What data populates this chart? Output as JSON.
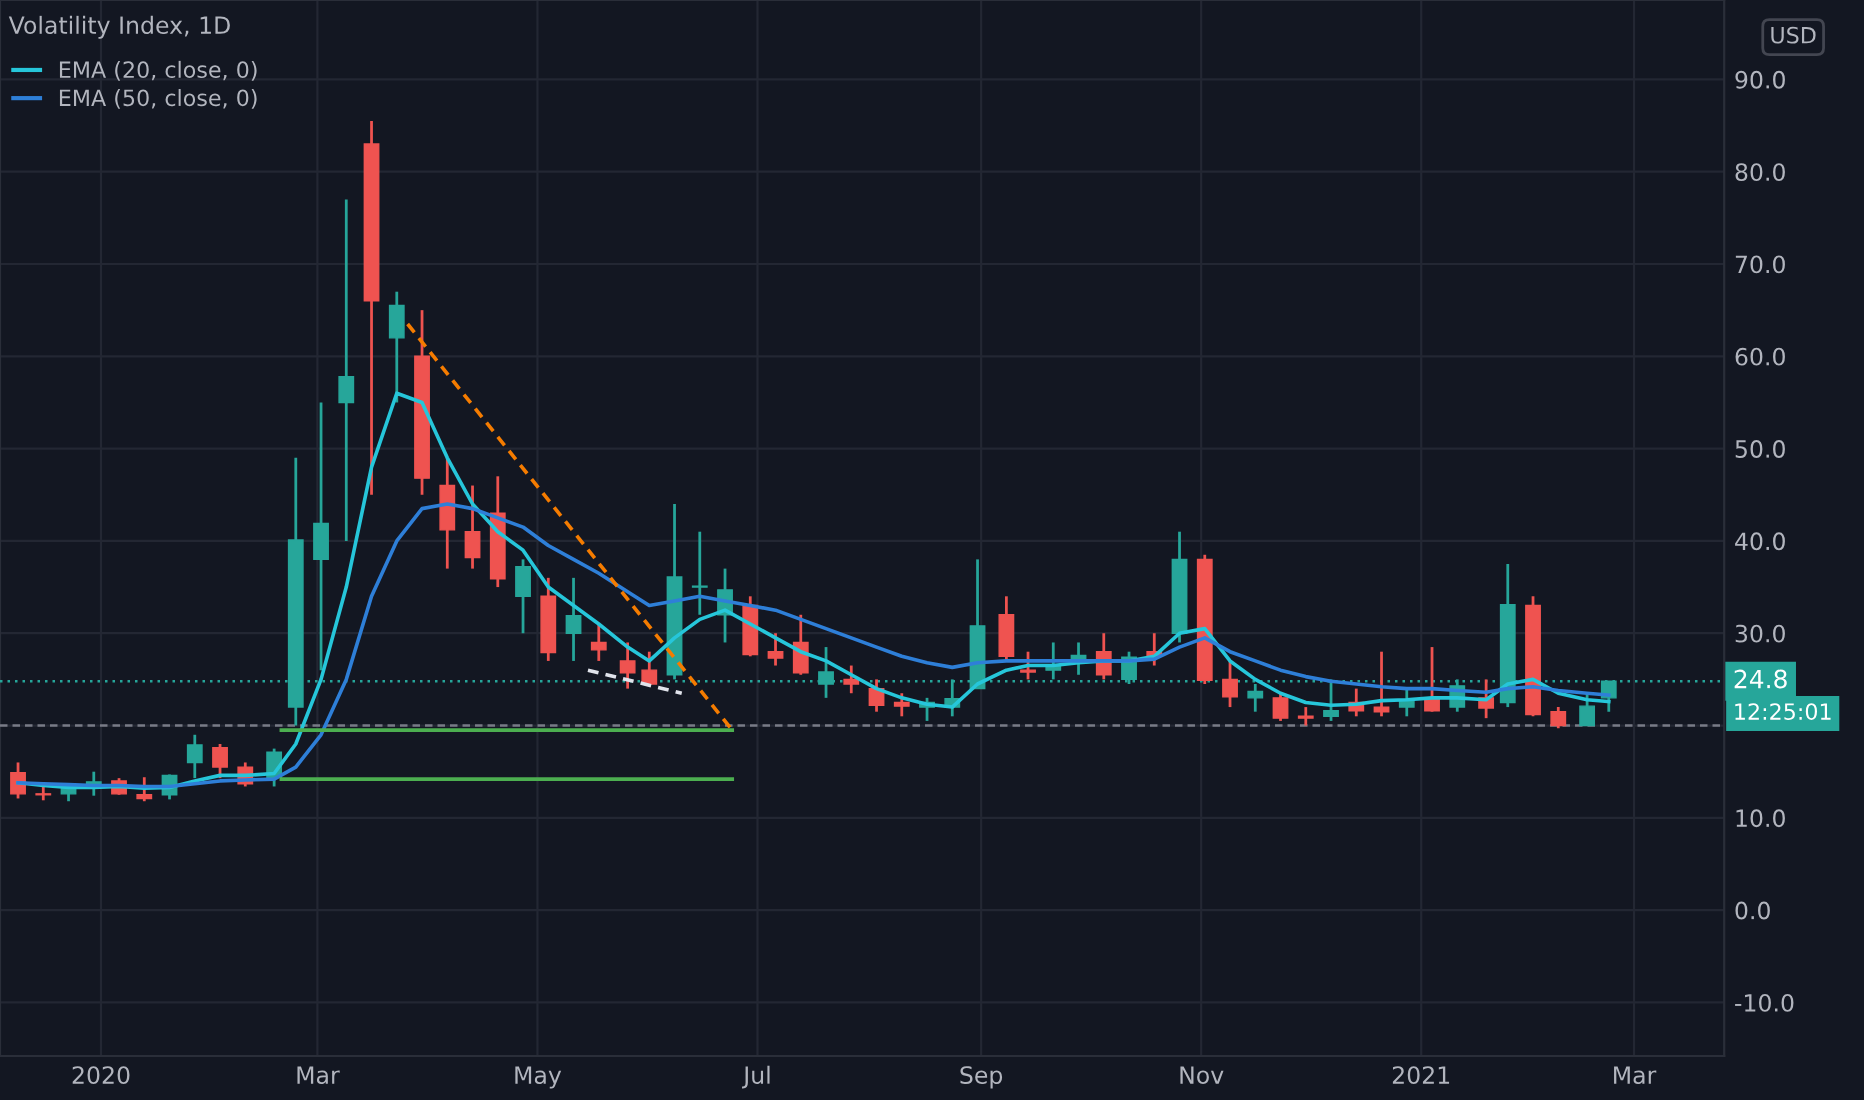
{
  "chart_data": {
    "type": "candlestick",
    "title": "Volatility Index, 1D",
    "x": [
      "2019-12-09",
      "2019-12-16",
      "2019-12-23",
      "2019-12-30",
      "2020-01-06",
      "2020-01-13",
      "2020-01-20",
      "2020-01-27",
      "2020-02-03",
      "2020-02-10",
      "2020-02-18",
      "2020-02-24",
      "2020-03-02",
      "2020-03-09",
      "2020-03-16",
      "2020-03-23",
      "2020-03-30",
      "2020-04-06",
      "2020-04-13",
      "2020-04-20",
      "2020-04-27",
      "2020-05-04",
      "2020-05-11",
      "2020-05-18",
      "2020-05-26",
      "2020-06-01",
      "2020-06-08",
      "2020-06-15",
      "2020-06-22",
      "2020-06-29",
      "2020-07-06",
      "2020-07-13",
      "2020-07-20",
      "2020-07-27",
      "2020-08-03",
      "2020-08-10",
      "2020-08-17",
      "2020-08-24",
      "2020-08-31",
      "2020-09-08",
      "2020-09-14",
      "2020-09-21",
      "2020-09-28",
      "2020-10-05",
      "2020-10-12",
      "2020-10-19",
      "2020-10-26",
      "2020-11-02",
      "2020-11-09",
      "2020-11-16",
      "2020-11-23",
      "2020-11-30",
      "2020-12-07",
      "2020-12-14",
      "2020-12-21",
      "2020-12-28",
      "2021-01-04",
      "2021-01-11",
      "2021-01-19",
      "2021-01-25",
      "2021-02-01",
      "2021-02-08",
      "2021-02-16",
      "2021-02-22"
    ],
    "ohlc": [
      [
        14.9,
        16.0,
        12.1,
        12.6
      ],
      [
        12.6,
        13.5,
        11.9,
        12.5
      ],
      [
        12.6,
        13.5,
        11.8,
        13.4
      ],
      [
        13.4,
        15.0,
        12.4,
        13.9
      ],
      [
        14.0,
        14.3,
        12.5,
        12.6
      ],
      [
        12.5,
        14.4,
        11.8,
        12.1
      ],
      [
        12.5,
        14.7,
        12.0,
        14.6
      ],
      [
        16.0,
        19.0,
        14.3,
        17.9
      ],
      [
        17.6,
        18.0,
        14.3,
        15.5
      ],
      [
        15.5,
        16.0,
        13.4,
        13.7
      ],
      [
        14.4,
        17.5,
        13.4,
        17.1
      ],
      [
        22.0,
        49.0,
        20.0,
        40.1
      ],
      [
        38.0,
        55.0,
        26.0,
        41.9
      ],
      [
        55.0,
        77.0,
        40.0,
        57.8
      ],
      [
        83.0,
        85.5,
        45.0,
        66.0
      ],
      [
        62.0,
        67.0,
        55.0,
        65.5
      ],
      [
        60.0,
        65.0,
        45.0,
        46.8
      ],
      [
        46.0,
        49.0,
        37.0,
        41.2
      ],
      [
        41.0,
        46.0,
        37.0,
        38.2
      ],
      [
        43.0,
        47.0,
        35.0,
        35.9
      ],
      [
        34.0,
        38.0,
        30.0,
        37.2
      ],
      [
        34.0,
        36.0,
        27.0,
        27.9
      ],
      [
        30.0,
        36.0,
        27.0,
        31.9
      ],
      [
        29.0,
        31.0,
        27.0,
        28.2
      ],
      [
        27.0,
        29.0,
        24.0,
        25.7
      ],
      [
        26.0,
        28.0,
        24.5,
        24.5
      ],
      [
        25.5,
        44.0,
        25.0,
        36.1
      ],
      [
        35.0,
        41.0,
        32.0,
        35.1
      ],
      [
        32.0,
        37.0,
        29.0,
        34.7
      ],
      [
        33.0,
        34.0,
        27.5,
        27.7
      ],
      [
        28.0,
        30.0,
        26.5,
        27.3
      ],
      [
        29.0,
        32.0,
        25.5,
        25.7
      ],
      [
        24.5,
        28.5,
        23.0,
        25.8
      ],
      [
        25.0,
        26.5,
        23.5,
        24.5
      ],
      [
        24.0,
        25.0,
        21.5,
        22.2
      ],
      [
        22.5,
        23.5,
        21.0,
        22.1
      ],
      [
        22.0,
        23.0,
        20.5,
        22.5
      ],
      [
        22.0,
        25.0,
        21.0,
        22.9
      ],
      [
        24.0,
        38.0,
        24.0,
        30.8
      ],
      [
        32.0,
        34.0,
        27.0,
        27.5
      ],
      [
        26.0,
        28.0,
        25.0,
        25.8
      ],
      [
        26.0,
        29.0,
        25.0,
        26.4
      ],
      [
        27.0,
        29.0,
        25.5,
        27.6
      ],
      [
        28.0,
        30.0,
        25.0,
        25.5
      ],
      [
        25.0,
        28.0,
        24.5,
        27.4
      ],
      [
        28.0,
        30.0,
        26.5,
        27.6
      ],
      [
        30.0,
        41.0,
        29.0,
        38.0
      ],
      [
        38.0,
        38.5,
        24.5,
        24.9
      ],
      [
        25.0,
        27.0,
        22.0,
        23.1
      ],
      [
        23.0,
        24.5,
        21.5,
        23.7
      ],
      [
        23.0,
        23.5,
        20.5,
        20.8
      ],
      [
        21.0,
        22.0,
        20.0,
        20.8
      ],
      [
        21.0,
        25.0,
        20.5,
        21.6
      ],
      [
        22.5,
        24.0,
        21.0,
        21.6
      ],
      [
        22.0,
        28.0,
        21.0,
        21.5
      ],
      [
        22.0,
        24.0,
        21.0,
        22.8
      ],
      [
        23.0,
        28.5,
        21.5,
        21.6
      ],
      [
        22.0,
        25.0,
        21.5,
        24.3
      ],
      [
        23.0,
        25.0,
        20.8,
        21.9
      ],
      [
        22.5,
        37.5,
        22.0,
        33.1
      ],
      [
        33.0,
        34.0,
        21.0,
        21.2
      ],
      [
        21.5,
        22.0,
        19.7,
        20.0
      ],
      [
        20.0,
        23.5,
        20.0,
        22.1
      ],
      [
        23.0,
        24.8,
        21.5,
        24.8
      ]
    ],
    "series": [
      {
        "name": "EMA (20, close, 0)",
        "type": "line",
        "color": "#26c6da",
        "values": [
          13.8,
          13.5,
          13.3,
          13.3,
          13.4,
          13.2,
          13.3,
          14.0,
          14.6,
          14.6,
          14.8,
          18,
          25,
          35,
          48,
          56,
          55,
          49,
          44,
          41,
          39,
          35,
          33,
          31,
          28.5,
          27,
          29.5,
          31.5,
          32.5,
          31,
          29.5,
          28,
          27,
          25.5,
          24,
          23,
          22.3,
          22,
          24.5,
          26,
          26.5,
          26.5,
          26.8,
          27,
          27,
          27.5,
          30,
          30.5,
          27,
          25,
          23.5,
          22.5,
          22.2,
          22.3,
          22.7,
          22.8,
          23,
          23,
          22.8,
          24.5,
          25,
          23.5,
          22.8,
          22.6
        ]
      },
      {
        "name": "EMA (50, close, 0)",
        "type": "line",
        "color": "#2e7fd8",
        "values": [
          13.8,
          13.7,
          13.6,
          13.5,
          13.5,
          13.4,
          13.4,
          13.7,
          14.0,
          14.1,
          14.2,
          15.5,
          19,
          25,
          34,
          40,
          43.5,
          44,
          43.5,
          42.5,
          41.5,
          39.5,
          38,
          36.5,
          34.5,
          33,
          33.5,
          34,
          33.5,
          33,
          32.5,
          31.5,
          30.5,
          29.5,
          28.5,
          27.5,
          26.8,
          26.3,
          26.8,
          27,
          27,
          27,
          27,
          27,
          27,
          27.2,
          28.5,
          29.5,
          28,
          27,
          26,
          25.3,
          24.8,
          24.5,
          24.2,
          24,
          24,
          23.8,
          23.6,
          24,
          24.2,
          23.8,
          23.5,
          23.3
        ]
      },
      {
        "type": "line",
        "line_style": "dashed",
        "color": "#f57c00",
        "x": [
          "2020-03-26",
          "2020-06-24"
        ],
        "values": [
          63.5,
          19.5
        ]
      },
      {
        "type": "line",
        "line_style": "dashed",
        "color": "#e0e3eb",
        "x": [
          "2020-05-15",
          "2020-06-10"
        ],
        "values": [
          26,
          23.5
        ]
      },
      {
        "type": "line",
        "color": "#4caf50",
        "x": [
          "2020-02-20",
          "2020-06-24"
        ],
        "values": [
          19.5,
          19.5
        ]
      },
      {
        "type": "line",
        "color": "#4caf50",
        "x": [
          "2020-02-20",
          "2020-06-24"
        ],
        "values": [
          14.2,
          14.2
        ]
      }
    ],
    "ref_lines": [
      {
        "axis": "y",
        "value": 24.8,
        "label": "24.8",
        "line_style": "dotted",
        "color": "#26a69a"
      },
      {
        "axis": "y",
        "value": 20.0,
        "line_style": "dashed",
        "color": "#787b86"
      }
    ],
    "annotations": [
      "USD",
      "12:25:01"
    ],
    "xlim": [
      "2019-12-04",
      "2021-03-26"
    ],
    "xticks": [
      {
        "value": "2020-01-01",
        "label": "2020"
      },
      {
        "value": "2020-03-01",
        "label": "Mar"
      },
      {
        "value": "2020-05-01",
        "label": "May"
      },
      {
        "value": "2020-07-01",
        "label": "Jul"
      },
      {
        "value": "2020-09-01",
        "label": "Sep"
      },
      {
        "value": "2020-11-01",
        "label": "Nov"
      },
      {
        "value": "2021-01-01",
        "label": "2021"
      },
      {
        "value": "2021-03-01",
        "label": "Mar"
      }
    ],
    "ylim": [
      -15.8,
      98.6
    ],
    "yticks": [
      {
        "value": -10,
        "label": "-10.0"
      },
      {
        "value": 0,
        "label": "0.0"
      },
      {
        "value": 10,
        "label": "10.0"
      },
      {
        "value": 20,
        "label": null
      },
      {
        "value": 30,
        "label": "30.0"
      },
      {
        "value": 40,
        "label": "40.0"
      },
      {
        "value": 50,
        "label": "50.0"
      },
      {
        "value": 60,
        "label": "60.0"
      },
      {
        "value": 70,
        "label": "70.0"
      },
      {
        "value": 80,
        "label": "80.0"
      },
      {
        "value": 90,
        "label": "90.0"
      }
    ],
    "grid": true,
    "legend": "top left"
  }
}
